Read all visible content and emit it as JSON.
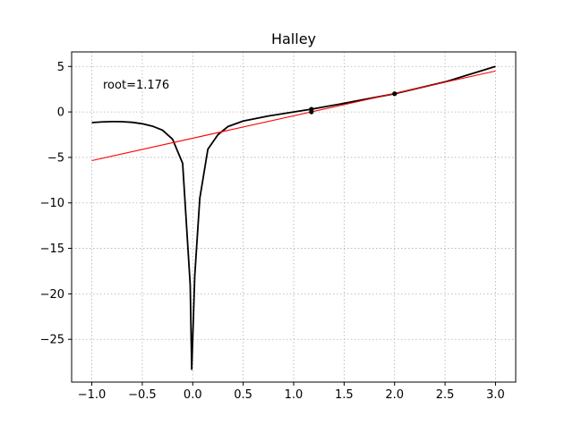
{
  "chart_data": {
    "type": "line",
    "title": "Halley",
    "xlabel": "",
    "ylabel": "",
    "xlim": [
      -1.2,
      3.2
    ],
    "ylim": [
      -29.7,
      6.6
    ],
    "grid": true,
    "xticks": [
      {
        "value": -1.0,
        "label": "−1.0"
      },
      {
        "value": -0.5,
        "label": "−0.5"
      },
      {
        "value": 0.0,
        "label": "0.0"
      },
      {
        "value": 0.5,
        "label": "0.5"
      },
      {
        "value": 1.0,
        "label": "1.0"
      },
      {
        "value": 1.5,
        "label": "1.5"
      },
      {
        "value": 2.0,
        "label": "2.0"
      },
      {
        "value": 2.5,
        "label": "2.5"
      },
      {
        "value": 3.0,
        "label": "3.0"
      }
    ],
    "yticks": [
      {
        "value": 5,
        "label": "5"
      },
      {
        "value": 0,
        "label": "0"
      },
      {
        "value": -5,
        "label": "−5"
      },
      {
        "value": -10,
        "label": "−10"
      },
      {
        "value": -15,
        "label": "−15"
      },
      {
        "value": -20,
        "label": "−20"
      },
      {
        "value": -25,
        "label": "−25"
      }
    ],
    "annotation": "root=1.176",
    "series": [
      {
        "color": "#000000",
        "points": [
          [
            -1.0,
            -1.17
          ],
          [
            -0.9,
            -1.1
          ],
          [
            -0.8,
            -1.06
          ],
          [
            -0.7,
            -1.07
          ],
          [
            -0.6,
            -1.14
          ],
          [
            -0.5,
            -1.3
          ],
          [
            -0.4,
            -1.56
          ],
          [
            -0.3,
            -2.0
          ],
          [
            -0.2,
            -3.0
          ],
          [
            -0.1,
            -5.65
          ],
          [
            -0.025,
            -19.0
          ],
          [
            -0.01,
            -28.3
          ],
          [
            0.02,
            -18.0
          ],
          [
            0.07,
            -9.5
          ],
          [
            0.15,
            -4.1
          ],
          [
            0.25,
            -2.5
          ],
          [
            0.35,
            -1.6
          ],
          [
            0.5,
            -1.0
          ],
          [
            0.75,
            -0.45
          ],
          [
            1.0,
            0.0
          ],
          [
            1.176,
            0.3
          ],
          [
            1.5,
            0.95
          ],
          [
            2.0,
            2.0
          ],
          [
            2.5,
            3.3
          ],
          [
            3.0,
            5.0
          ]
        ]
      },
      {
        "color": "#ff0000",
        "points": [
          [
            -1.0,
            -5.35
          ],
          [
            3.0,
            4.5
          ]
        ]
      }
    ],
    "markers": [
      {
        "x": 2.0,
        "y": 2.0
      },
      {
        "x": 1.176,
        "y": 0.3
      },
      {
        "x": 1.176,
        "y": 0.0
      }
    ]
  }
}
